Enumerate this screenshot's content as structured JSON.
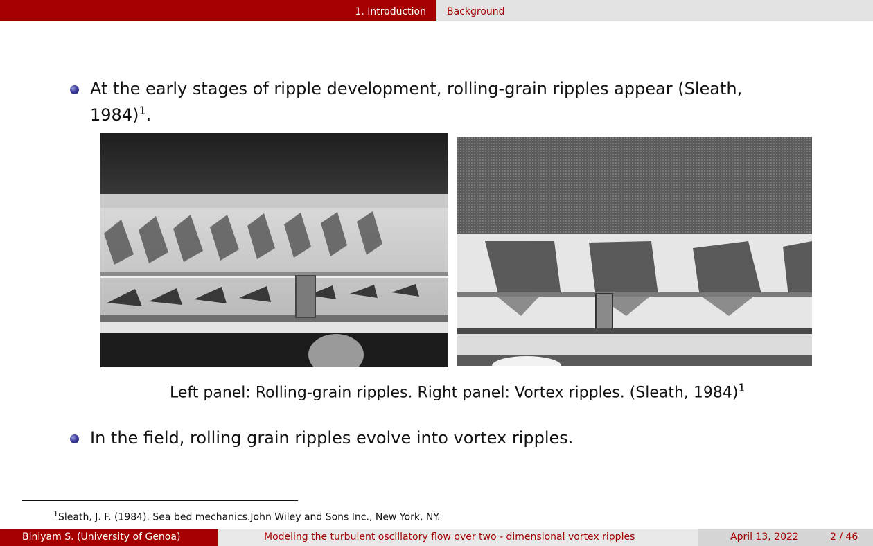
{
  "header": {
    "section": "1. Introduction",
    "subsection": "Background"
  },
  "bullets": [
    {
      "text": "At the early stages of ripple development, rolling-grain ripples appear (Sleath,",
      "text2": "1984)",
      "sup": "1",
      "tail": "."
    },
    {
      "text": "In the field, rolling grain ripples evolve into vortex ripples."
    }
  ],
  "figure": {
    "left_image": "rolling-grain ripples photo",
    "right_image": "vortex ripples photo",
    "caption": "Left panel: Rolling-grain ripples. Right panel: Vortex ripples. (Sleath, 1984)",
    "caption_sup": "1"
  },
  "footnote": {
    "mark": "1",
    "text": "Sleath, J. F. (1984). Sea bed mechanics.John Wiley and Sons Inc., New York, NY."
  },
  "footer": {
    "author": "Biniyam S.  (University of Genoa)",
    "title": "Modeling the turbulent oscillatory flow over two - dimensional vortex ripples",
    "date": "April 13, 2022",
    "page": "2 / 46"
  },
  "colors": {
    "accent": "#a50000",
    "header_bg": "#e3e3e3",
    "bullet": "#3d3d9e"
  }
}
